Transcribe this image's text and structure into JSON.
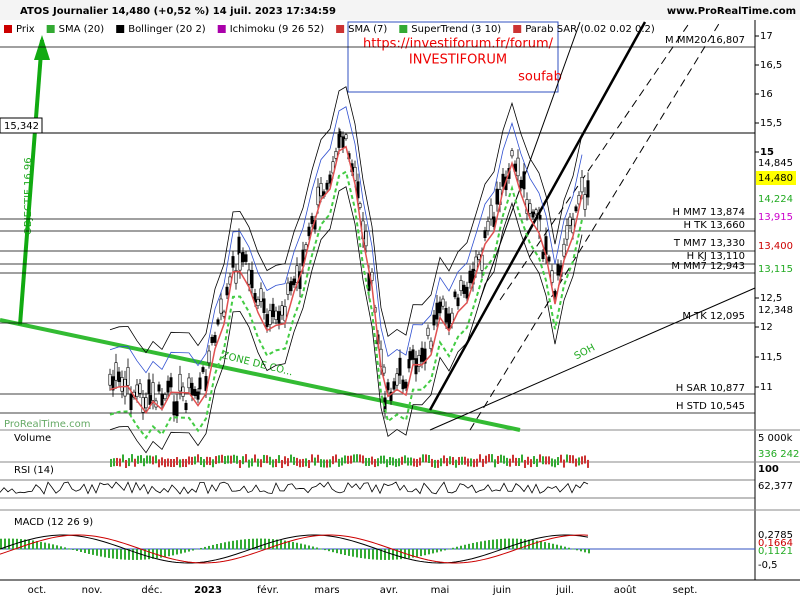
{
  "header": {
    "title": "ATOS Journalier 14,480 (+0,52 %) 14 juil. 2023 17:34:59",
    "site": "www.ProRealTime.com"
  },
  "indicators": [
    "Prix",
    "SMA (20)",
    "Bollinger (20 2)",
    "Ichimoku (9 26 52)",
    "SMA (7)",
    "SuperTrend (3 10)",
    "Parab SAR (0.02 0.02 0.2)"
  ],
  "annotations": {
    "url": "https://investiforum.fr/forum/",
    "brand": "INVESTIFORUM",
    "author": "soufab",
    "target": "OBJECTIF 16,96",
    "zone": "ZONE DE CO...",
    "soh": "SOH",
    "watermark": "ProRealTime.com"
  },
  "price_axis": [
    "17",
    "16,5",
    "16",
    "15,5",
    "15",
    "12,5",
    "12",
    "11,5",
    "11"
  ],
  "levels": [
    "M MM20 16,807",
    "H MM7 13,874",
    "H TK 13,660",
    "T MM7 13,330",
    "H KJ 13,110",
    "M MM7 12,943",
    "M TK 12,095",
    "H SAR 10,877",
    "H STD 10,545"
  ],
  "left_level": "15,342",
  "badges": [
    "14,845",
    "14,480",
    "14,224",
    "13,915",
    "13,400",
    "13,115",
    "12,348"
  ],
  "volume": {
    "label": "Volume",
    "axis": "5 000k",
    "last": "336 242"
  },
  "rsi": {
    "label": "RSI (14)",
    "axis": "100",
    "last": "62,377"
  },
  "macd": {
    "label": "MACD (12 26 9)",
    "values": [
      "0,2785",
      "0,1664",
      "0,1121"
    ],
    "axis": "-0,5"
  },
  "months": [
    "oct.",
    "nov.",
    "déc.",
    "2023",
    "févr.",
    "mars",
    "avr.",
    "mai",
    "juin",
    "juil.",
    "août",
    "sept."
  ]
}
